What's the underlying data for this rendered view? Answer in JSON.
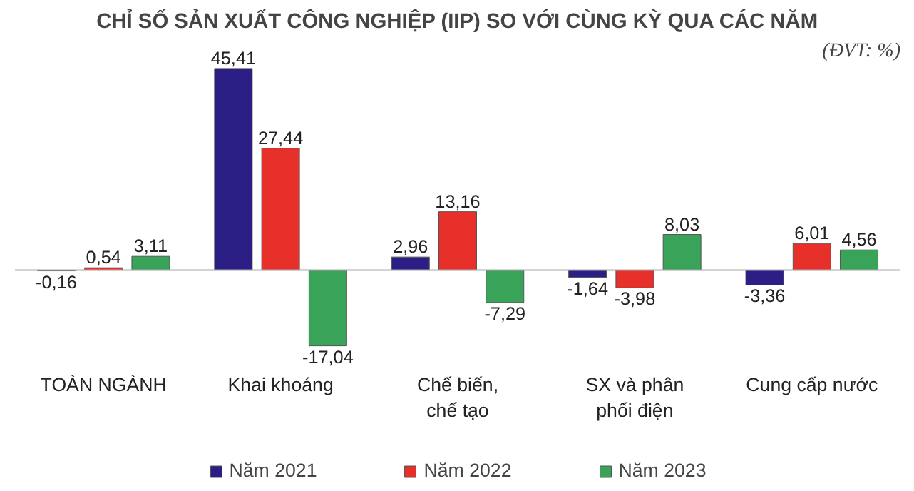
{
  "chart_data": {
    "type": "bar",
    "title": "CHỈ SỐ SẢN XUẤT CÔNG NGHIỆP (IIP) SO VỚI CÙNG KỲ QUA CÁC NĂM",
    "annotations": [
      "(ĐVT: %)"
    ],
    "categories": [
      "TOÀN NGÀNH",
      "Khai khoáng",
      "Chế biến,\nchế tạo",
      "SX và phân\nphối điện",
      "Cung cấp nước"
    ],
    "series": [
      {
        "name": "Năm 2021",
        "color": "#2b1f86",
        "values": [
          -0.16,
          45.41,
          2.96,
          -1.64,
          -3.36
        ],
        "value_labels": [
          "-0,16",
          "45,41",
          "2,96",
          "-1,64",
          "-3,36"
        ]
      },
      {
        "name": "Năm 2022",
        "color": "#e8302a",
        "values": [
          0.54,
          27.44,
          13.16,
          -3.98,
          6.01
        ],
        "value_labels": [
          "0,54",
          "27,44",
          "13,16",
          "-3,98",
          "6,01"
        ]
      },
      {
        "name": "Năm 2023",
        "color": "#3aa35a",
        "values": [
          3.11,
          -17.04,
          -7.29,
          8.03,
          4.56
        ],
        "value_labels": [
          "3,11",
          "-17,04",
          "-7,29",
          "8,03",
          "4,56"
        ]
      }
    ],
    "legend": "bottom"
  }
}
